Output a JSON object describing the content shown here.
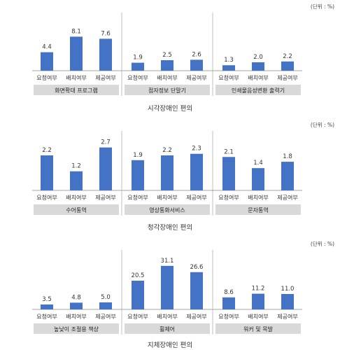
{
  "chart_data": [
    {
      "type": "bar",
      "unit_label": "(단위 : %)",
      "caption": "시각장애인 편의",
      "ylim": [
        0,
        10
      ],
      "groups": [
        {
          "label": "화면확대 프로그램",
          "categories": [
            "요청여부",
            "배치여부",
            "제공여부"
          ],
          "values": [
            4.4,
            8.1,
            7.6
          ],
          "value_labels": [
            "4.4",
            "8.1",
            "7.6"
          ]
        },
        {
          "label": "점자정보 단말기",
          "categories": [
            "요청여부",
            "배치여부",
            "제공여부"
          ],
          "values": [
            1.9,
            2.5,
            2.6
          ],
          "value_labels": [
            "1.9",
            "2.5",
            "2.6"
          ]
        },
        {
          "label": "인쇄물음성변환 출력기",
          "categories": [
            "요청여부",
            "배치여부",
            "제공여부"
          ],
          "values": [
            1.3,
            2.0,
            2.2
          ],
          "value_labels": [
            "1.3",
            "2.0",
            "2.2"
          ]
        }
      ]
    },
    {
      "type": "bar",
      "unit_label": "(단위 : %)",
      "caption": "청각장애인 편의",
      "ylim": [
        0,
        3.3
      ],
      "groups": [
        {
          "label": "수어통역",
          "categories": [
            "요청여부",
            "배치여부",
            "제공여부"
          ],
          "values": [
            2.2,
            1.2,
            2.7
          ],
          "value_labels": [
            "2.2",
            "1.2",
            "2.7"
          ]
        },
        {
          "label": "영상통화서비스",
          "categories": [
            "요청여부",
            "배치여부",
            "제공여부"
          ],
          "values": [
            1.9,
            2.2,
            2.3
          ],
          "value_labels": [
            "1.9",
            "2.2",
            "2.3"
          ]
        },
        {
          "label": "문자통역",
          "categories": [
            "요청여부",
            "배치여부",
            "제공여부"
          ],
          "values": [
            2.1,
            1.4,
            1.8
          ],
          "value_labels": [
            "2.1",
            "1.4",
            "1.8"
          ]
        }
      ]
    },
    {
      "type": "bar",
      "unit_label": "(단위 : %)",
      "caption": "지체장애인 편의",
      "ylim": [
        0,
        37
      ],
      "groups": [
        {
          "label": "높낮이 조절용 책상",
          "categories": [
            "요청여부",
            "배치여부",
            "제공여부"
          ],
          "values": [
            3.5,
            4.8,
            5.0
          ],
          "value_labels": [
            "3.5",
            "4.8",
            "5.0"
          ]
        },
        {
          "label": "휠체어",
          "categories": [
            "요청여부",
            "배치여부",
            "제공여부"
          ],
          "values": [
            20.5,
            31.1,
            26.6
          ],
          "value_labels": [
            "20.5",
            "31.1",
            "26.6"
          ]
        },
        {
          "label": "워커 및 목발",
          "categories": [
            "요청여부",
            "배치여부",
            "제공여부"
          ],
          "values": [
            8.6,
            11.2,
            11.0
          ],
          "value_labels": [
            "8.6",
            "11.2",
            "11.0"
          ]
        }
      ]
    }
  ],
  "colors": {
    "bar": "#4472C4",
    "label_box": "#D9D9D9",
    "divider": "#BFBFBF",
    "axis": "#A6A6A6"
  }
}
